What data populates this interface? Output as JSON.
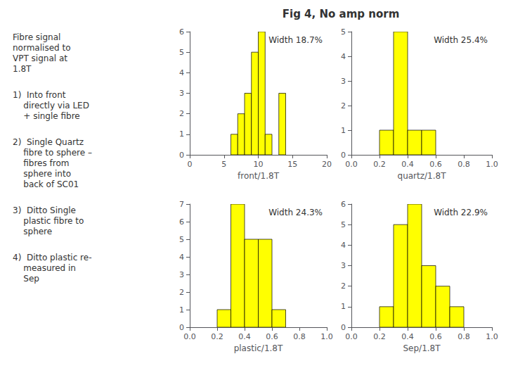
{
  "title": "Fig 4, No amp norm",
  "annotations": [
    "Fibre signal\nnormalised to\nVPT signal at\n1.8T",
    "1)  Into front\n    directly via LED\n    + single fibre",
    "2)  Single Quartz\n    fibre to sphere –\n    fibres from\n    sphere into\n    back of SC01",
    "3)  Ditto Single\n    plastic fibre to\n    sphere",
    "4)  Ditto plastic re-\n    measured in\n    Sep"
  ],
  "chart_data": [
    {
      "type": "histogram",
      "bins": [
        0,
        1,
        2,
        3,
        4,
        5,
        6,
        7,
        8,
        9,
        10,
        11,
        12,
        13,
        14,
        15,
        16,
        17,
        18,
        19,
        20
      ],
      "values": [
        0,
        0,
        0,
        0,
        0,
        0,
        1,
        2,
        3,
        5,
        6,
        1,
        0,
        3,
        0,
        0,
        0,
        0,
        0,
        0
      ],
      "color": "#ffff00",
      "xlabel": "front/1.8T",
      "xlim": [
        0,
        20
      ],
      "xticks": [
        0,
        5,
        10,
        15,
        20
      ],
      "ylim": [
        0,
        6
      ],
      "yticks": [
        0,
        1,
        2,
        3,
        4,
        5,
        6
      ],
      "annotations": [
        "Width 18.7%"
      ],
      "grid": false
    },
    {
      "type": "histogram",
      "bins": [
        0.0,
        0.1,
        0.2,
        0.3,
        0.4,
        0.5,
        0.6,
        0.7,
        0.8,
        0.9,
        1.0
      ],
      "values": [
        0,
        0,
        1,
        5,
        1,
        1,
        0,
        0,
        0,
        0
      ],
      "color": "#ffff00",
      "xlabel": "quartz/1.8T",
      "xlim": [
        0,
        1
      ],
      "xticks": [
        {
          "value": 0,
          "label": "0.0"
        },
        0.2,
        0.4,
        0.6,
        0.8,
        {
          "value": 1,
          "label": "1.0"
        }
      ],
      "ylim": [
        0,
        5
      ],
      "yticks": [
        0,
        1,
        2,
        3,
        4,
        5
      ],
      "annotations": [
        "Width 25.4%"
      ],
      "grid": false
    },
    {
      "type": "histogram",
      "bins": [
        0.0,
        0.1,
        0.2,
        0.3,
        0.4,
        0.5,
        0.6,
        0.7,
        0.8,
        0.9,
        1.0
      ],
      "values": [
        0,
        0,
        1,
        7,
        5,
        5,
        1,
        0,
        0,
        0
      ],
      "color": "#ffff00",
      "xlabel": "plastic/1.8T",
      "xlim": [
        0,
        1
      ],
      "xticks": [
        {
          "value": 0,
          "label": "0.0"
        },
        0.2,
        0.4,
        0.6,
        0.8,
        {
          "value": 1,
          "label": "1.0"
        }
      ],
      "ylim": [
        0,
        7
      ],
      "yticks": [
        0,
        1,
        2,
        3,
        4,
        5,
        6,
        7
      ],
      "annotations": [
        "Width 24.3%"
      ],
      "grid": false
    },
    {
      "type": "histogram",
      "bins": [
        0.0,
        0.1,
        0.2,
        0.3,
        0.4,
        0.5,
        0.6,
        0.7,
        0.8,
        0.9,
        1.0
      ],
      "values": [
        0,
        0,
        1,
        5,
        6,
        3,
        2,
        1,
        0,
        0
      ],
      "color": "#ffff00",
      "xlabel": "Sep/1.8T",
      "xlim": [
        0,
        1
      ],
      "xticks": [
        {
          "value": 0,
          "label": "0.0"
        },
        0.2,
        0.4,
        0.6,
        0.8,
        {
          "value": 1,
          "label": "1.0"
        }
      ],
      "ylim": [
        0,
        6
      ],
      "yticks": [
        0,
        1,
        2,
        3,
        4,
        5,
        6
      ],
      "annotations": [
        "Width 22.9%"
      ],
      "grid": false
    }
  ]
}
